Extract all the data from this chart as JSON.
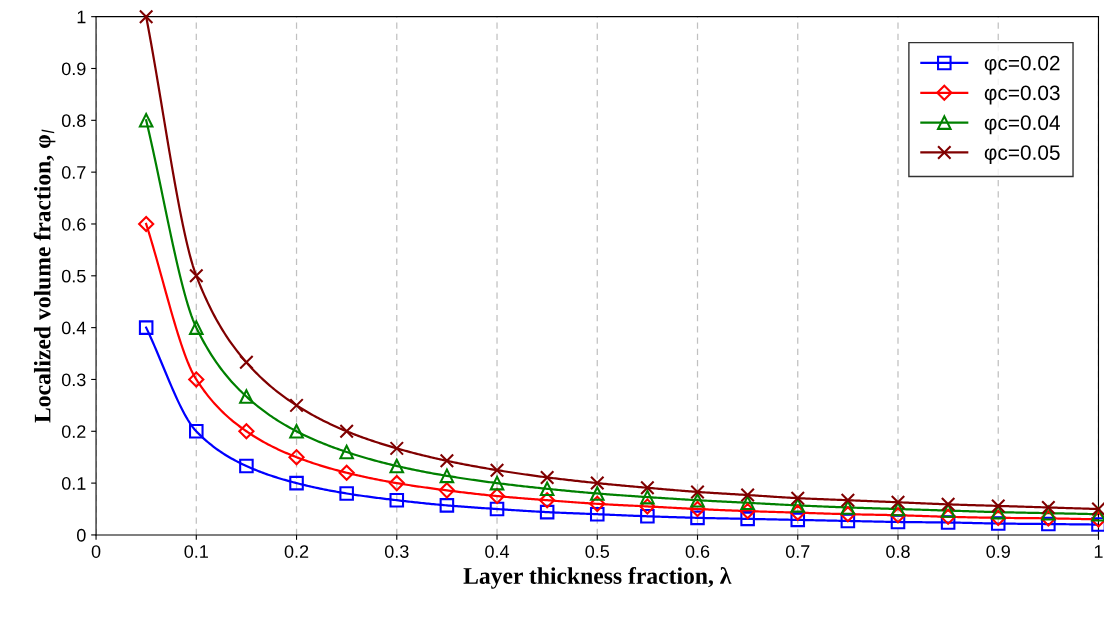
{
  "chart_data": {
    "type": "line",
    "xlabel": "Layer thickness fraction, λ",
    "ylabel": "Localized volume fraction, φ$_{l}$",
    "x": [
      0.05,
      0.1,
      0.15,
      0.2,
      0.25,
      0.3,
      0.35,
      0.4,
      0.45,
      0.5,
      0.55,
      0.6,
      0.65,
      0.7,
      0.75,
      0.8,
      0.85,
      0.9,
      0.95,
      1
    ],
    "series": [
      {
        "name": "φc=0.02",
        "color": "#0000ff",
        "marker": "square",
        "values": [
          0.4,
          0.2,
          0.133,
          0.1,
          0.08,
          0.067,
          0.057,
          0.05,
          0.044,
          0.04,
          0.036,
          0.033,
          0.031,
          0.029,
          0.027,
          0.025,
          0.024,
          0.022,
          0.021,
          0.02
        ]
      },
      {
        "name": "φc=0.03",
        "color": "#ff0000",
        "marker": "diamond",
        "values": [
          0.6,
          0.3,
          0.2,
          0.15,
          0.12,
          0.1,
          0.086,
          0.075,
          0.067,
          0.06,
          0.055,
          0.05,
          0.046,
          0.043,
          0.04,
          0.038,
          0.035,
          0.033,
          0.032,
          0.03
        ]
      },
      {
        "name": "φc=0.04",
        "color": "#008000",
        "marker": "triangle",
        "values": [
          0.8,
          0.4,
          0.267,
          0.2,
          0.16,
          0.133,
          0.114,
          0.1,
          0.089,
          0.08,
          0.073,
          0.067,
          0.062,
          0.057,
          0.053,
          0.05,
          0.047,
          0.044,
          0.042,
          0.04
        ]
      },
      {
        "name": "φc=0.05",
        "color": "#800000",
        "marker": "cross",
        "values": [
          1,
          0.5,
          0.333,
          0.25,
          0.2,
          0.167,
          0.143,
          0.125,
          0.111,
          0.1,
          0.091,
          0.083,
          0.077,
          0.071,
          0.067,
          0.063,
          0.059,
          0.056,
          0.053,
          0.05
        ]
      }
    ],
    "xlim": [
      0,
      1
    ],
    "xticks": [
      0,
      0.1,
      0.2,
      0.3,
      0.4,
      0.5,
      0.6,
      0.7,
      0.8,
      0.9,
      1
    ],
    "ylim": [
      0,
      1
    ],
    "yticks": [
      0,
      0.1,
      0.2,
      0.3,
      0.4,
      0.5,
      0.6,
      0.7,
      0.8,
      0.9,
      1
    ],
    "grid": "x",
    "legend": "top right",
    "line_style": "solid"
  }
}
